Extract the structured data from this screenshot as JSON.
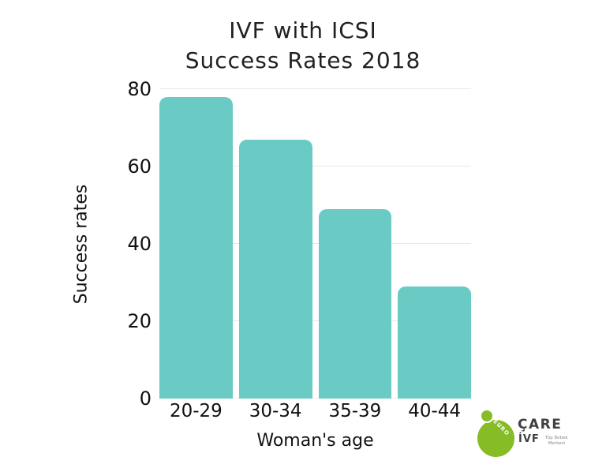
{
  "title": {
    "line1": "IVF with ICSI",
    "line2": "Success Rates 2018"
  },
  "chart_data": {
    "type": "bar",
    "title": "IVF with ICSI Success Rates 2018",
    "categories": [
      "20-29",
      "30-34",
      "35-39",
      "40-44"
    ],
    "values": [
      78,
      67,
      49,
      29
    ],
    "xlabel": "Woman's age",
    "ylabel": "Success rates",
    "ylim": [
      0,
      80
    ],
    "yticks": [
      0,
      20,
      40,
      60,
      80
    ],
    "grid": true,
    "legend": "none",
    "bar_color": "#69cbc4",
    "gridline_color": "#e8e8e8"
  },
  "logo": {
    "circle_text": "EURO",
    "brand_line1": "ÇARE",
    "brand_line2": "İVF",
    "tagline_line1": "Tüp Bebek",
    "tagline_line2": "Merkezi",
    "green": "#86bc25",
    "text_color": "#404040"
  }
}
